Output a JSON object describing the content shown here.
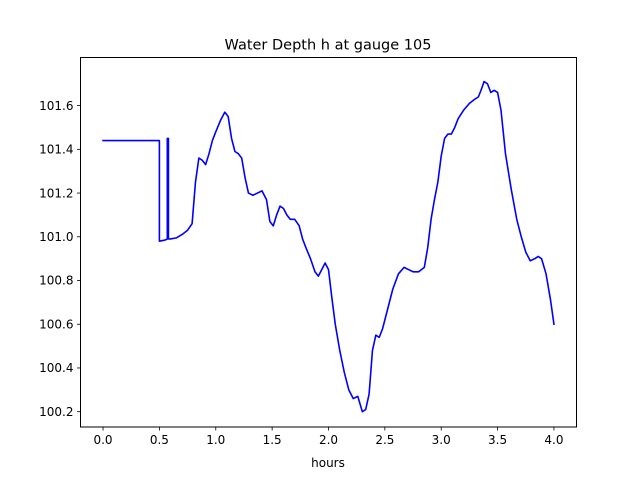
{
  "chart_data": {
    "type": "line",
    "title": "Water Depth h at gauge 105",
    "xlabel": "hours",
    "ylabel": "",
    "xlim": [
      -0.2,
      4.2
    ],
    "ylim": [
      100.13,
      101.82
    ],
    "xticks": [
      0.0,
      0.5,
      1.0,
      1.5,
      2.0,
      2.5,
      3.0,
      3.5,
      4.0
    ],
    "xtick_labels": [
      "0.0",
      "0.5",
      "1.0",
      "1.5",
      "2.0",
      "2.5",
      "3.0",
      "3.5",
      "4.0"
    ],
    "yticks": [
      100.2,
      100.4,
      100.6,
      100.8,
      101.0,
      101.2,
      101.4,
      101.6
    ],
    "ytick_labels": [
      "100.2",
      "100.4",
      "100.6",
      "100.8",
      "101.0",
      "101.2",
      "101.4",
      "101.6"
    ],
    "grid": false,
    "line_color": "#0000ff",
    "series": [
      {
        "x": [
          0.0,
          0.1,
          0.2,
          0.3,
          0.4,
          0.49,
          0.5,
          0.5,
          0.55,
          0.57,
          0.57,
          0.58,
          0.58,
          0.6,
          0.65,
          0.7,
          0.75,
          0.79,
          0.82,
          0.85,
          0.88,
          0.91,
          0.94,
          0.97,
          1.0,
          1.04,
          1.08,
          1.11,
          1.14,
          1.17,
          1.2,
          1.23,
          1.26,
          1.29,
          1.33,
          1.37,
          1.41,
          1.45,
          1.48,
          1.51,
          1.54,
          1.57,
          1.6,
          1.63,
          1.66,
          1.7,
          1.74,
          1.77,
          1.8,
          1.84,
          1.88,
          1.91,
          1.94,
          1.97,
          2.0,
          2.03,
          2.06,
          2.1,
          2.14,
          2.18,
          2.22,
          2.26,
          2.3,
          2.33,
          2.36,
          2.39,
          2.42,
          2.45,
          2.48,
          2.52,
          2.57,
          2.62,
          2.67,
          2.71,
          2.75,
          2.8,
          2.85,
          2.88,
          2.91,
          2.94,
          2.97,
          3.0,
          3.03,
          3.06,
          3.09,
          3.12,
          3.15,
          3.2,
          3.25,
          3.3,
          3.33,
          3.36,
          3.38,
          3.41,
          3.44,
          3.47,
          3.5,
          3.53,
          3.57,
          3.62,
          3.67,
          3.71,
          3.75,
          3.79,
          3.83,
          3.86,
          3.89,
          3.93,
          3.97,
          4.0
        ],
        "y": [
          101.44,
          101.44,
          101.44,
          101.44,
          101.44,
          101.44,
          101.44,
          100.98,
          100.985,
          100.99,
          101.45,
          101.45,
          100.99,
          100.99,
          100.995,
          101.01,
          101.03,
          101.06,
          101.25,
          101.36,
          101.35,
          101.33,
          101.38,
          101.44,
          101.48,
          101.53,
          101.57,
          101.55,
          101.45,
          101.39,
          101.38,
          101.36,
          101.27,
          101.2,
          101.19,
          101.2,
          101.21,
          101.17,
          101.07,
          101.05,
          101.1,
          101.14,
          101.13,
          101.1,
          101.08,
          101.08,
          101.05,
          100.99,
          100.95,
          100.9,
          100.84,
          100.82,
          100.85,
          100.88,
          100.85,
          100.72,
          100.6,
          100.48,
          100.38,
          100.3,
          100.26,
          100.27,
          100.2,
          100.21,
          100.28,
          100.48,
          100.55,
          100.54,
          100.58,
          100.66,
          100.76,
          100.83,
          100.86,
          100.85,
          100.84,
          100.84,
          100.86,
          100.95,
          101.08,
          101.17,
          101.25,
          101.37,
          101.45,
          101.47,
          101.47,
          101.5,
          101.54,
          101.58,
          101.61,
          101.63,
          101.64,
          101.68,
          101.71,
          101.7,
          101.66,
          101.67,
          101.66,
          101.58,
          101.38,
          101.22,
          101.08,
          101.0,
          100.93,
          100.89,
          100.9,
          100.91,
          100.9,
          100.83,
          100.71,
          100.6
        ]
      }
    ]
  }
}
